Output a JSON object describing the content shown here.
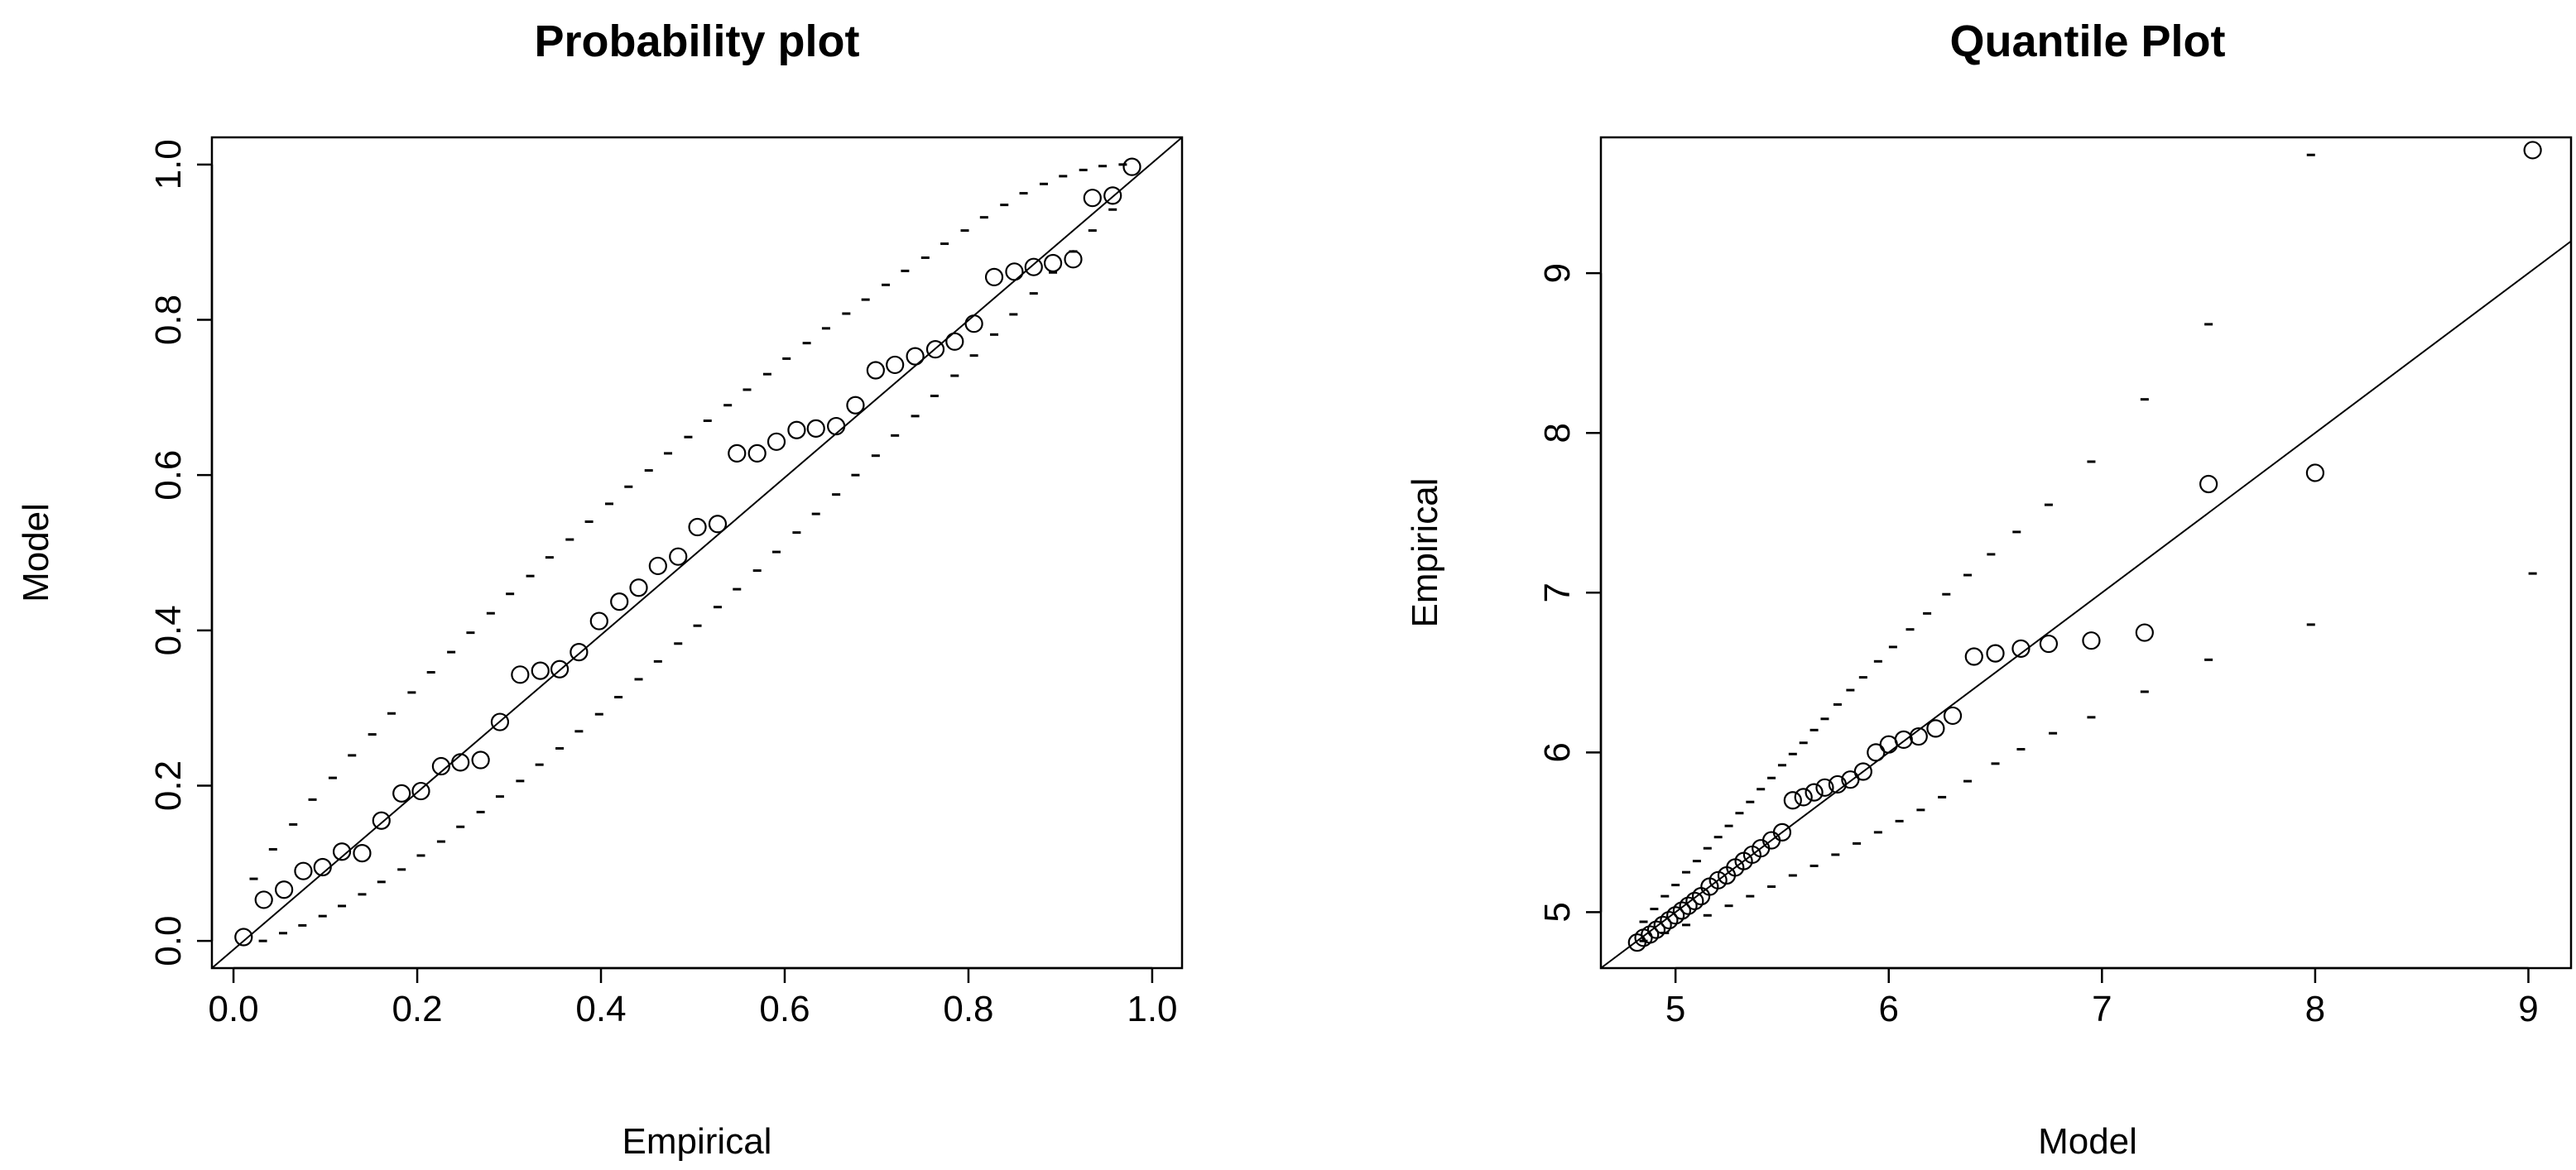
{
  "chart_data": [
    {
      "type": "scatter",
      "title": "Probability plot",
      "xlabel": "Empirical",
      "ylabel": "Model",
      "xlim": [
        -0.0235,
        1.0325
      ],
      "ylim": [
        -0.035,
        1.035
      ],
      "xticks": [
        0.0,
        0.2,
        0.4,
        0.6,
        0.8,
        1.0
      ],
      "xtick_labels": [
        "0.0",
        "0.2",
        "0.4",
        "0.6",
        "0.8",
        "1.0"
      ],
      "yticks": [
        0.0,
        0.2,
        0.4,
        0.6,
        0.8,
        1.0
      ],
      "ytick_labels": [
        "0.0",
        "0.2",
        "0.4",
        "0.6",
        "0.8",
        "1.0"
      ],
      "grid": false,
      "reference_line": [
        [
          -0.0235,
          -0.035
        ],
        [
          1.0325,
          1.035
        ]
      ],
      "points": {
        "x": [
          0.011,
          0.033,
          0.055,
          0.076,
          0.097,
          0.118,
          0.14,
          0.161,
          0.183,
          0.204,
          0.226,
          0.247,
          0.269,
          0.29,
          0.312,
          0.334,
          0.355,
          0.376,
          0.398,
          0.42,
          0.441,
          0.462,
          0.484,
          0.505,
          0.527,
          0.548,
          0.57,
          0.591,
          0.613,
          0.634,
          0.656,
          0.677,
          0.699,
          0.72,
          0.742,
          0.764,
          0.785,
          0.806,
          0.828,
          0.85,
          0.871,
          0.892,
          0.914,
          0.935,
          0.957,
          0.978
        ],
        "y": [
          0.005,
          0.053,
          0.066,
          0.09,
          0.095,
          0.115,
          0.113,
          0.155,
          0.19,
          0.193,
          0.225,
          0.23,
          0.233,
          0.282,
          0.343,
          0.348,
          0.35,
          0.372,
          0.412,
          0.437,
          0.455,
          0.483,
          0.495,
          0.533,
          0.537,
          0.628,
          0.628,
          0.643,
          0.658,
          0.66,
          0.663,
          0.69,
          0.735,
          0.742,
          0.753,
          0.762,
          0.772,
          0.795,
          0.855,
          0.862,
          0.868,
          0.873,
          0.878,
          0.957,
          0.96,
          0.997
        ]
      },
      "upper_band": {
        "x": [
          0.022,
          0.043,
          0.065,
          0.086,
          0.108,
          0.129,
          0.151,
          0.172,
          0.194,
          0.215,
          0.237,
          0.258,
          0.28,
          0.301,
          0.323,
          0.344,
          0.366,
          0.387,
          0.409,
          0.43,
          0.452,
          0.473,
          0.495,
          0.516,
          0.538,
          0.559,
          0.581,
          0.602,
          0.624,
          0.645,
          0.667,
          0.688,
          0.71,
          0.731,
          0.753,
          0.774,
          0.796,
          0.817,
          0.839,
          0.86,
          0.882,
          0.903,
          0.925,
          0.946,
          0.968
        ],
        "y": [
          0.08,
          0.118,
          0.15,
          0.182,
          0.21,
          0.239,
          0.266,
          0.293,
          0.32,
          0.346,
          0.372,
          0.397,
          0.422,
          0.447,
          0.47,
          0.494,
          0.517,
          0.54,
          0.563,
          0.585,
          0.606,
          0.628,
          0.649,
          0.67,
          0.69,
          0.71,
          0.73,
          0.75,
          0.77,
          0.789,
          0.808,
          0.826,
          0.845,
          0.863,
          0.88,
          0.898,
          0.915,
          0.932,
          0.948,
          0.963,
          0.975,
          0.985,
          0.993,
          0.998,
          1.0
        ]
      },
      "lower_band": {
        "x": [
          0.032,
          0.054,
          0.075,
          0.097,
          0.118,
          0.14,
          0.161,
          0.183,
          0.204,
          0.226,
          0.247,
          0.269,
          0.29,
          0.312,
          0.333,
          0.355,
          0.376,
          0.398,
          0.419,
          0.441,
          0.462,
          0.484,
          0.505,
          0.527,
          0.548,
          0.57,
          0.591,
          0.613,
          0.634,
          0.656,
          0.677,
          0.699,
          0.72,
          0.742,
          0.763,
          0.785,
          0.806,
          0.828,
          0.849,
          0.871,
          0.892,
          0.914,
          0.935,
          0.957
        ],
        "y": [
          0.0,
          0.01,
          0.02,
          0.032,
          0.045,
          0.06,
          0.076,
          0.092,
          0.11,
          0.128,
          0.147,
          0.166,
          0.186,
          0.206,
          0.227,
          0.248,
          0.27,
          0.292,
          0.314,
          0.337,
          0.36,
          0.383,
          0.406,
          0.43,
          0.453,
          0.477,
          0.501,
          0.526,
          0.55,
          0.575,
          0.6,
          0.625,
          0.651,
          0.676,
          0.702,
          0.728,
          0.754,
          0.781,
          0.807,
          0.834,
          0.861,
          0.888,
          0.915,
          0.942
        ]
      }
    },
    {
      "type": "scatter",
      "title": "Quantile Plot",
      "xlabel": "Model",
      "ylabel": "Empirical",
      "xlim": [
        4.65,
        9.2
      ],
      "ylim": [
        4.65,
        9.85
      ],
      "xticks": [
        5,
        6,
        7,
        8,
        9
      ],
      "xtick_labels": [
        "5",
        "6",
        "7",
        "8",
        "9"
      ],
      "yticks": [
        5,
        6,
        7,
        8,
        9
      ],
      "ytick_labels": [
        "5",
        "6",
        "7",
        "8",
        "9"
      ],
      "grid": false,
      "reference_line": [
        [
          4.65,
          4.65
        ],
        [
          9.2,
          9.2
        ]
      ],
      "points": {
        "x": [
          4.82,
          4.85,
          4.88,
          4.91,
          4.94,
          4.97,
          5.0,
          5.03,
          5.06,
          5.09,
          5.12,
          5.16,
          5.2,
          5.24,
          5.28,
          5.32,
          5.36,
          5.4,
          5.45,
          5.5,
          5.55,
          5.6,
          5.65,
          5.7,
          5.76,
          5.82,
          5.88,
          5.94,
          6.0,
          6.07,
          6.14,
          6.22,
          6.3,
          6.4,
          6.5,
          6.62,
          6.75,
          6.95,
          7.2,
          7.5,
          8.0,
          9.02
        ],
        "y": [
          4.81,
          4.84,
          4.86,
          4.89,
          4.92,
          4.95,
          4.98,
          5.01,
          5.04,
          5.07,
          5.1,
          5.16,
          5.2,
          5.23,
          5.28,
          5.32,
          5.36,
          5.4,
          5.45,
          5.5,
          5.7,
          5.72,
          5.75,
          5.78,
          5.8,
          5.83,
          5.88,
          6.0,
          6.05,
          6.08,
          6.1,
          6.15,
          6.23,
          6.6,
          6.62,
          6.65,
          6.68,
          6.7,
          6.75,
          7.68,
          7.75,
          9.77
        ]
      },
      "upper_band": {
        "x": [
          4.85,
          4.9,
          4.95,
          5.0,
          5.05,
          5.1,
          5.15,
          5.2,
          5.25,
          5.3,
          5.35,
          5.4,
          5.45,
          5.5,
          5.55,
          5.6,
          5.65,
          5.7,
          5.76,
          5.82,
          5.88,
          5.95,
          6.02,
          6.1,
          6.18,
          6.27,
          6.37,
          6.48,
          6.6,
          6.75,
          6.95,
          7.2,
          7.5,
          7.98
        ],
        "y": [
          4.94,
          5.02,
          5.1,
          5.17,
          5.25,
          5.32,
          5.4,
          5.47,
          5.54,
          5.62,
          5.69,
          5.77,
          5.84,
          5.92,
          5.99,
          6.06,
          6.14,
          6.21,
          6.3,
          6.39,
          6.47,
          6.57,
          6.66,
          6.77,
          6.87,
          6.99,
          7.11,
          7.24,
          7.38,
          7.55,
          7.82,
          8.21,
          8.68,
          9.74
        ]
      },
      "lower_band": {
        "x": [
          4.85,
          4.95,
          5.05,
          5.15,
          5.25,
          5.35,
          5.45,
          5.55,
          5.65,
          5.75,
          5.85,
          5.95,
          6.05,
          6.15,
          6.25,
          6.37,
          6.5,
          6.62,
          6.77,
          6.95,
          7.2,
          7.5,
          7.98,
          9.02
        ],
        "y": [
          4.82,
          4.87,
          4.92,
          4.98,
          5.04,
          5.1,
          5.16,
          5.23,
          5.29,
          5.36,
          5.43,
          5.5,
          5.57,
          5.64,
          5.72,
          5.82,
          5.93,
          6.02,
          6.12,
          6.22,
          6.38,
          6.58,
          6.8,
          7.12
        ]
      }
    }
  ]
}
